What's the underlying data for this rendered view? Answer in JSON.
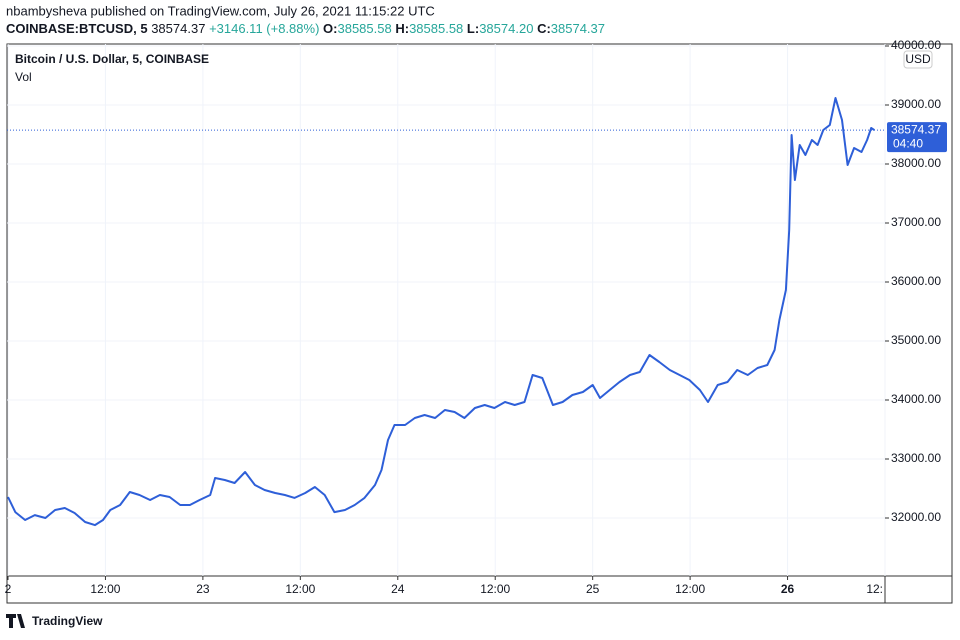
{
  "header": {
    "byline": "nbambysheva published on TradingView.com, July 26, 2021 11:15:22 UTC",
    "symbol": "COINBASE:BTCUSD, 5",
    "last": "38574.37",
    "change": "+3146.11 (+8.88%)",
    "o_label": "O:",
    "o": "38585.58",
    "h_label": "H:",
    "h": "38585.58",
    "l_label": "L:",
    "l": "38574.20",
    "c_label": "C:",
    "c": "38574.37"
  },
  "chart_data": {
    "type": "line",
    "title": "Bitcoin / U.S. Dollar, 5, COINBASE",
    "volume_label": "Vol",
    "currency": "USD",
    "x": [
      0,
      0.9,
      2.1,
      3.3,
      4.6,
      5.8,
      7.0,
      8.2,
      9.5,
      10.7,
      11.7,
      12.6,
      13.8,
      15.0,
      16.2,
      17.5,
      18.7,
      19.9,
      21.2,
      22.4,
      23.6,
      24.9,
      25.5,
      26.7,
      27.9,
      29.2,
      30.4,
      31.6,
      32.9,
      34.1,
      35.3,
      36.6,
      37.8,
      39.0,
      40.2,
      41.5,
      42.7,
      43.9,
      45.2,
      46.0,
      46.8,
      47.6,
      48.9,
      50.1,
      51.3,
      52.6,
      53.8,
      55.0,
      56.2,
      57.5,
      58.7,
      59.9,
      61.2,
      62.4,
      63.6,
      64.6,
      65.8,
      67.1,
      68.3,
      69.5,
      70.8,
      72.0,
      72.9,
      74.1,
      75.3,
      76.6,
      77.8,
      79.0,
      80.2,
      81.5,
      82.7,
      83.9,
      85.2,
      86.2,
      87.4,
      88.6,
      89.8,
      91.1,
      92.3,
      93.5,
      94.4,
      95.0,
      95.8,
      96.2,
      96.5,
      96.9,
      97.5,
      98.2,
      99.0,
      99.7,
      100.4,
      101.2,
      101.9,
      102.7,
      103.4,
      104.2,
      105.1,
      105.8,
      106.3,
      106.7
    ],
    "series": [
      {
        "name": "BTCUSD",
        "color": "#2e5fd8",
        "values": [
          32356,
          32100,
          31966,
          32050,
          32000,
          32136,
          32170,
          32085,
          31932,
          31880,
          31966,
          32136,
          32220,
          32440,
          32390,
          32305,
          32390,
          32356,
          32220,
          32220,
          32305,
          32390,
          32678,
          32644,
          32593,
          32780,
          32560,
          32475,
          32424,
          32390,
          32340,
          32424,
          32525,
          32390,
          32100,
          32136,
          32220,
          32340,
          32560,
          32813,
          33322,
          33576,
          33576,
          33695,
          33746,
          33695,
          33830,
          33797,
          33695,
          33864,
          33915,
          33864,
          33966,
          33915,
          33966,
          34424,
          34373,
          33915,
          33966,
          34085,
          34136,
          34254,
          34034,
          34170,
          34305,
          34424,
          34475,
          34763,
          34644,
          34508,
          34424,
          34339,
          34170,
          33966,
          34254,
          34305,
          34508,
          34424,
          34542,
          34593,
          34847,
          35356,
          35864,
          36881,
          38492,
          37729,
          38322,
          38153,
          38407,
          38322,
          38576,
          38661,
          39119,
          38746,
          37983,
          38271,
          38203,
          38407,
          38610,
          38574.37
        ]
      }
    ],
    "last_price": {
      "value": 38574.37,
      "label": "38574.37"
    },
    "countdown": "04:40",
    "xlim": [
      0,
      108
    ],
    "xticks": [
      {
        "value": 0,
        "label": "2"
      },
      {
        "value": 12,
        "label": "12:00"
      },
      {
        "value": 24,
        "label": "23"
      },
      {
        "value": 36,
        "label": "12:00"
      },
      {
        "value": 48,
        "label": "24"
      },
      {
        "value": 60,
        "label": "12:00"
      },
      {
        "value": 72,
        "label": "25"
      },
      {
        "value": 84,
        "label": "12:00"
      },
      {
        "value": 96,
        "label": "26"
      },
      {
        "value": 108,
        "label": "12:"
      }
    ],
    "ylim": [
      31017,
      40034
    ],
    "yticks": [
      {
        "value": 32000,
        "label": "32000.00"
      },
      {
        "value": 33000,
        "label": "33000.00"
      },
      {
        "value": 34000,
        "label": "34000.00"
      },
      {
        "value": 35000,
        "label": "35000.00"
      },
      {
        "value": 36000,
        "label": "36000.00"
      },
      {
        "value": 37000,
        "label": "37000.00"
      },
      {
        "value": 38000,
        "label": "38000.00"
      },
      {
        "value": 39000,
        "label": "39000.00"
      },
      {
        "value": 40000,
        "label": "40000.00"
      }
    ],
    "grid": true
  },
  "footer": {
    "logo": "TradingView"
  }
}
